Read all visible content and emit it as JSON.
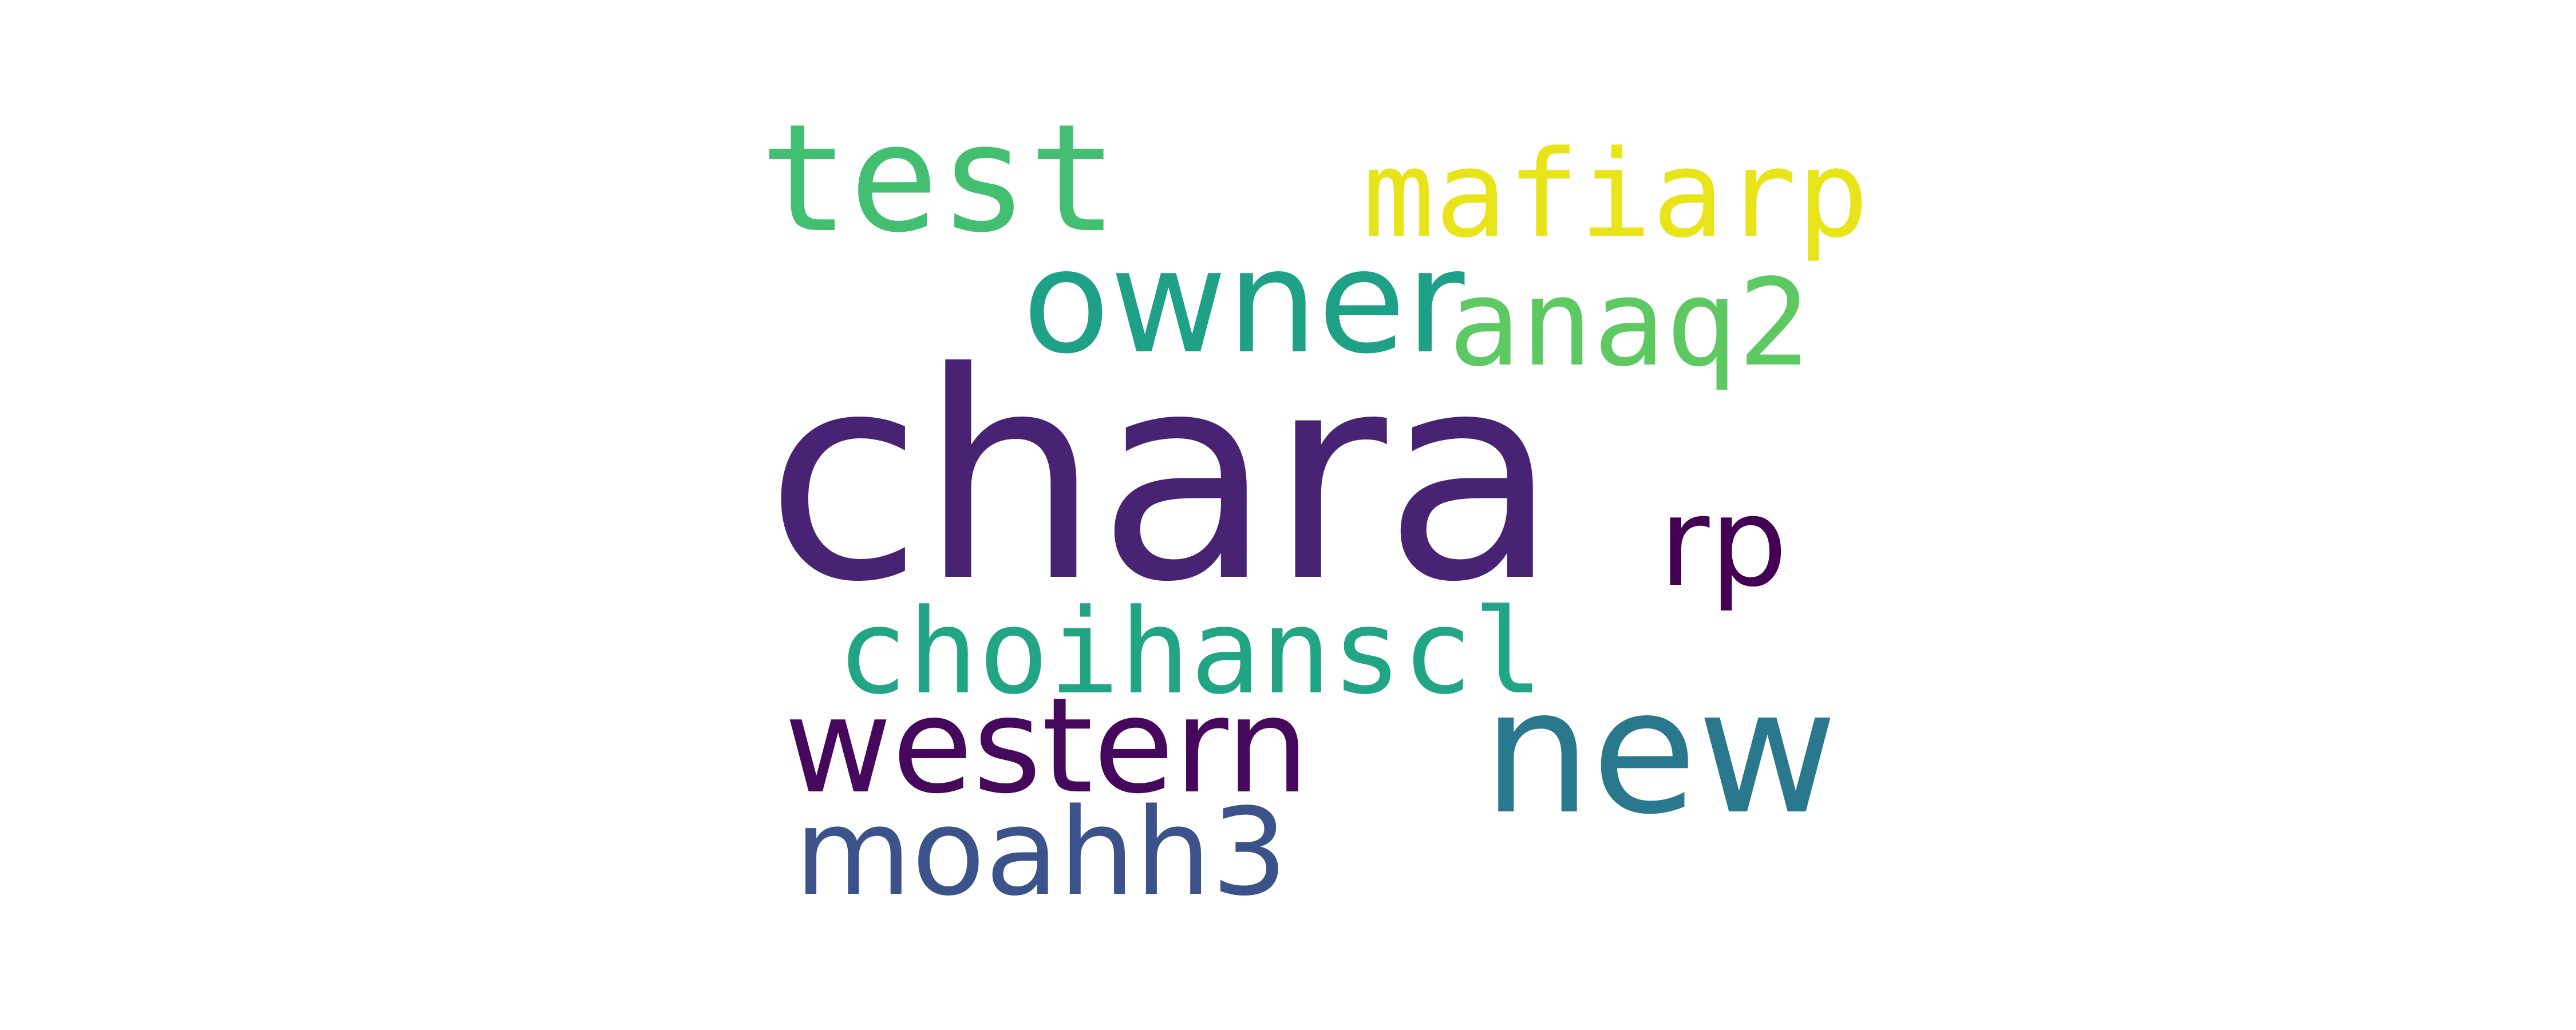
{
  "words": {
    "chara": {
      "text": "chara",
      "color": "#482374"
    },
    "test": {
      "text": "test",
      "color": "#43bf71"
    },
    "mafiarp": {
      "text": "mafiarp",
      "color": "#e8e419"
    },
    "owner": {
      "text": "owner",
      "color": "#1fa188"
    },
    "anaq2": {
      "text": "anaq2",
      "color": "#5ec962"
    },
    "rp": {
      "text": "rp",
      "color": "#440154"
    },
    "choihanscl": {
      "text": "choihanscl",
      "color": "#21a585"
    },
    "new": {
      "text": "new",
      "color": "#2a788e"
    },
    "western": {
      "text": "western",
      "color": "#46085c"
    },
    "moahh3": {
      "text": "moahh3",
      "color": "#3b528b"
    }
  }
}
